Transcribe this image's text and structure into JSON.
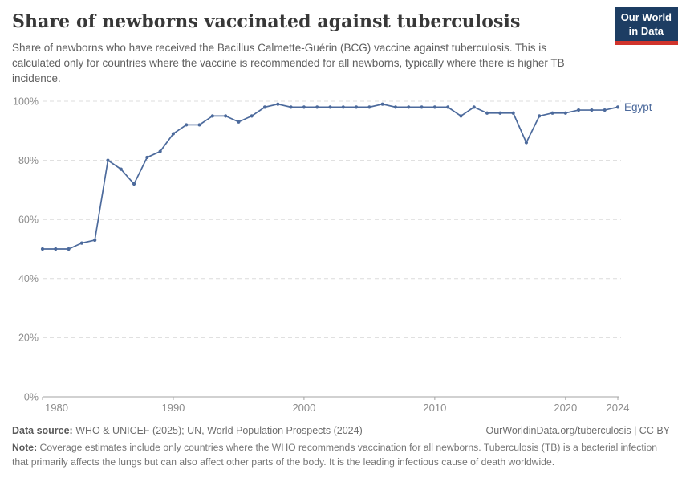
{
  "header": {
    "title": "Share of newborns vaccinated against tuberculosis",
    "subtitle": "Share of newborns who have received the Bacillus Calmette-Guérin (BCG) vaccine against tuberculosis. This is calculated only for countries where the vaccine is recommended for all newborns, typically where there is higher TB incidence.",
    "logo": {
      "line1": "Our World",
      "line2": "in Data",
      "bg_color": "#1d3d63",
      "accent_color": "#d1342c"
    }
  },
  "chart_data": {
    "type": "line",
    "title": "Share of newborns vaccinated against tuberculosis",
    "xlabel": "",
    "ylabel": "",
    "xlim": [
      1980,
      2024
    ],
    "ylim": [
      0,
      100
    ],
    "x_ticks": [
      1980,
      1990,
      2000,
      2010,
      2020,
      2024
    ],
    "y_ticks": [
      0,
      20,
      40,
      60,
      80,
      100
    ],
    "y_tick_suffix": "%",
    "grid": "horizontal-dashed",
    "legend_position": "end-of-line-label",
    "colors": {
      "line": "#4c6a9c",
      "gridline": "#dcdcdc",
      "axis": "#a3a3a3",
      "tick_label": "#8c8c8c"
    },
    "series": [
      {
        "name": "Egypt",
        "color": "#4c6a9c",
        "x": [
          1980,
          1981,
          1982,
          1983,
          1984,
          1985,
          1986,
          1987,
          1988,
          1989,
          1990,
          1991,
          1992,
          1993,
          1994,
          1995,
          1996,
          1997,
          1998,
          1999,
          2000,
          2001,
          2002,
          2003,
          2004,
          2005,
          2006,
          2007,
          2008,
          2009,
          2010,
          2011,
          2012,
          2013,
          2014,
          2015,
          2016,
          2017,
          2018,
          2019,
          2020,
          2021,
          2022,
          2023,
          2024
        ],
        "values": [
          50,
          50,
          50,
          52,
          53,
          80,
          77,
          72,
          81,
          83,
          89,
          92,
          92,
          95,
          95,
          93,
          95,
          98,
          99,
          98,
          98,
          98,
          98,
          98,
          98,
          98,
          99,
          98,
          98,
          98,
          98,
          98,
          95,
          98,
          96,
          96,
          96,
          86,
          95,
          96,
          96,
          97,
          97,
          97,
          98
        ]
      }
    ]
  },
  "footer": {
    "datasource_label": "Data source:",
    "datasource_text": " WHO & UNICEF (2025); UN, World Population Prospects (2024)",
    "link_text": "OurWorldinData.org/tuberculosis | CC BY",
    "note_label": "Note:",
    "note_text": " Coverage estimates include only countries where the WHO recommends vaccination for all newborns. Tuberculosis (TB) is a bacterial infection that primarily affects the lungs but can also affect other parts of the body. It is the leading infectious cause of death worldwide."
  }
}
